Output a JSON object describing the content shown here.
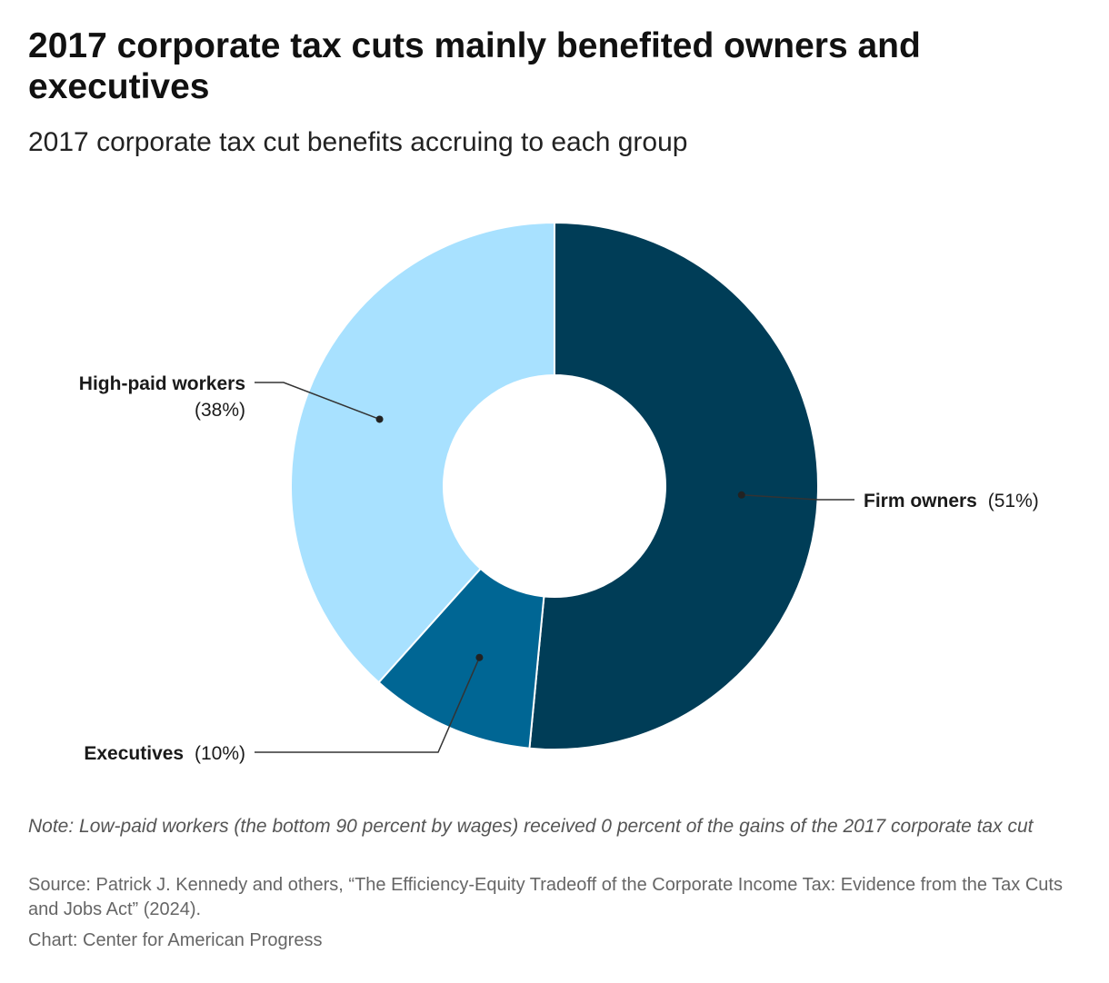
{
  "title": "2017 corporate tax cuts mainly benefited owners and executives",
  "subtitle": "2017 corporate tax cut benefits accruing to each group",
  "note": "Note: Low-paid workers (the bottom 90 percent by wages) received 0 percent of the gains of the 2017 corporate tax cut",
  "source": "Source: Patrick J. Kennedy and others, “The Efficiency-Equity Tradeoff of the Corporate Income Tax: Evidence from the Tax Cuts and Jobs Act” (2024).",
  "credit": "Chart: Center for American Progress",
  "chart_data": {
    "type": "pie",
    "variant": "donut",
    "start": "12 o'clock",
    "direction": "clockwise",
    "slices": [
      {
        "label": "Firm owners",
        "value": 51,
        "value_label": "(51%)",
        "color": "#003d57"
      },
      {
        "label": "Executives",
        "value": 10,
        "value_label": "(10%)",
        "color": "#006694"
      },
      {
        "label": "High-paid workers",
        "value": 38,
        "value_label": "(38%)",
        "color": "#a8e1ff"
      }
    ]
  }
}
